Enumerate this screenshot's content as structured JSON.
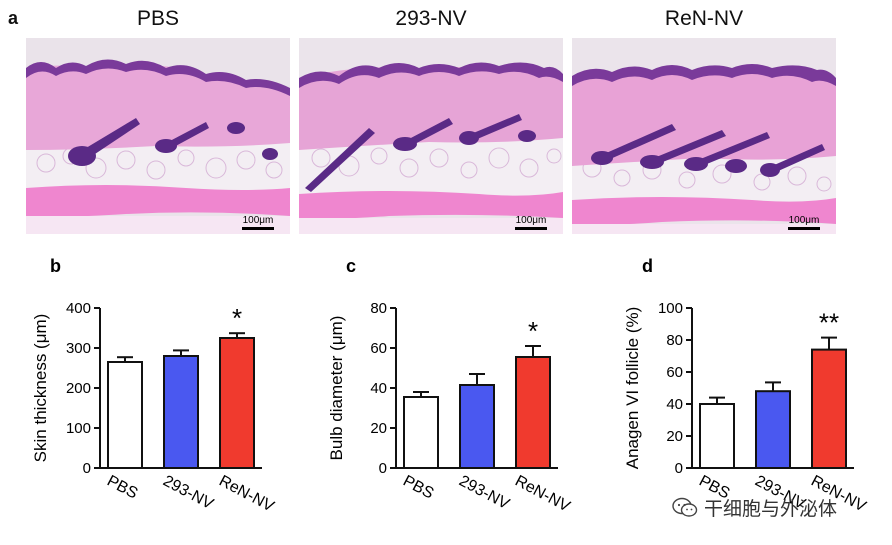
{
  "figure": {
    "panel_a": {
      "letter": "a",
      "images": [
        {
          "title": "PBS",
          "scale_bar": "100μm"
        },
        {
          "title": "293-NV",
          "scale_bar": "100μm"
        },
        {
          "title": "ReN-NV",
          "scale_bar": "100μm"
        }
      ]
    },
    "watermark": {
      "text": "干细胞与外泌体",
      "icon": "wechat-icon"
    }
  },
  "colors": {
    "pbs": "#ffffff",
    "nv293": "#4a58f0",
    "renNV": "#f03a2e",
    "stroke": "#111111"
  },
  "chart_data": [
    {
      "type": "bar",
      "panel": "b",
      "categories": [
        "PBS",
        "293-NV",
        "ReN-NV"
      ],
      "values": [
        265,
        280,
        325
      ],
      "errors": [
        12,
        14,
        12
      ],
      "significance": [
        "",
        "",
        "*"
      ],
      "ylabel": "Skin thickness (μm)",
      "ylim": [
        0,
        400
      ],
      "yticks": [
        0,
        100,
        200,
        300,
        400
      ]
    },
    {
      "type": "bar",
      "panel": "c",
      "categories": [
        "PBS",
        "293-NV",
        "ReN-NV"
      ],
      "values": [
        35.5,
        41.5,
        55.5
      ],
      "errors": [
        2.5,
        5.5,
        5.5
      ],
      "significance": [
        "",
        "",
        "*"
      ],
      "ylabel": "Bulb diameter (μm)",
      "ylim": [
        0,
        80
      ],
      "yticks": [
        0,
        20,
        40,
        60,
        80
      ]
    },
    {
      "type": "bar",
      "panel": "d",
      "categories": [
        "PBS",
        "293-NV",
        "ReN-NV"
      ],
      "values": [
        40,
        48,
        74
      ],
      "errors": [
        4,
        5.5,
        7.5
      ],
      "significance": [
        "",
        "",
        "**"
      ],
      "ylabel": "Anagen VI follicle (%)",
      "ylim": [
        0,
        100
      ],
      "yticks": [
        0,
        20,
        40,
        60,
        80,
        100
      ]
    }
  ]
}
